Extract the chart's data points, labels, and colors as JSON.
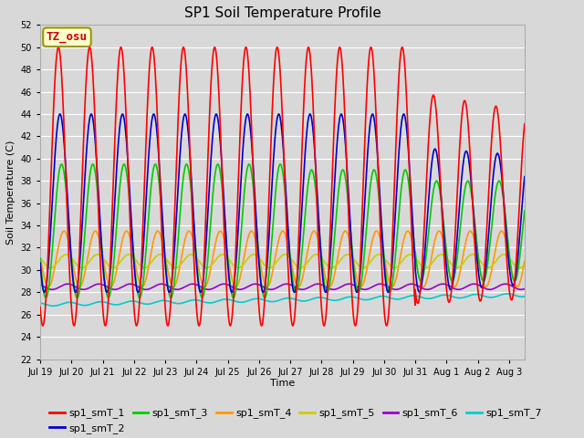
{
  "title": "SP1 Soil Temperature Profile",
  "xlabel": "Time",
  "ylabel": "Soil Temperature (C)",
  "annotation": "TZ_osu",
  "annotation_color": "#cc0000",
  "annotation_box_color": "#ffffcc",
  "annotation_box_edge": "#999900",
  "ylim": [
    22,
    52
  ],
  "yticks": [
    22,
    24,
    26,
    28,
    30,
    32,
    34,
    36,
    38,
    40,
    42,
    44,
    46,
    48,
    50,
    52
  ],
  "series_colors": {
    "sp1_smT_1": "#ff0000",
    "sp1_smT_2": "#0000cc",
    "sp1_smT_3": "#00cc00",
    "sp1_smT_4": "#ff9900",
    "sp1_smT_5": "#cccc00",
    "sp1_smT_6": "#9900cc",
    "sp1_smT_7": "#00cccc"
  },
  "background_color": "#d8d8d8",
  "plot_bg_color": "#d8d8d8",
  "grid_color": "#ffffff",
  "title_fontsize": 11,
  "axis_label_fontsize": 8,
  "tick_fontsize": 7,
  "legend_fontsize": 8
}
